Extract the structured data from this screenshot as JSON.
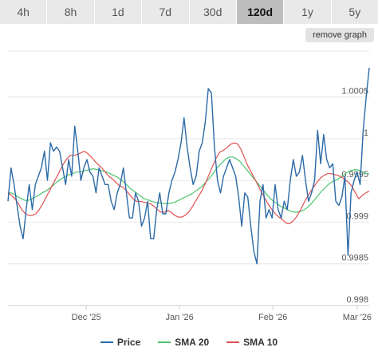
{
  "tabs": [
    {
      "label": "4h",
      "active": false
    },
    {
      "label": "8h",
      "active": false
    },
    {
      "label": "1d",
      "active": false
    },
    {
      "label": "7d",
      "active": false
    },
    {
      "label": "30d",
      "active": false
    },
    {
      "label": "120d",
      "active": true
    },
    {
      "label": "1y",
      "active": false
    },
    {
      "label": "5y",
      "active": false
    }
  ],
  "remove_graph_label": "remove graph",
  "colors": {
    "price": "#2b6aa8",
    "sma20": "#4cc46e",
    "sma10": "#e05050"
  },
  "chart_data": {
    "type": "line",
    "ylim": [
      0.998,
      1.00105
    ],
    "yticks": [
      {
        "value": 0.998,
        "label": "0.998"
      },
      {
        "value": 0.9985,
        "label": "0.9985"
      },
      {
        "value": 0.999,
        "label": "0.999"
      },
      {
        "value": 0.9995,
        "label": "0.9995"
      },
      {
        "value": 1.0,
        "label": "1"
      },
      {
        "value": 1.0005,
        "label": "1.0005"
      }
    ],
    "xlim": [
      0,
      120
    ],
    "xticks": [
      {
        "value": 26,
        "label": "Dec '25"
      },
      {
        "value": 57,
        "label": "Jan '26"
      },
      {
        "value": 88,
        "label": "Feb '26"
      },
      {
        "value": 116,
        "label": "Mar '26"
      }
    ],
    "grid": true,
    "legend": "bottom",
    "series": [
      {
        "name": "Price",
        "key": "price",
        "values": [
          0.99925,
          0.99965,
          0.99945,
          0.9992,
          0.99895,
          0.9988,
          0.99915,
          0.99945,
          0.99915,
          0.99945,
          0.99955,
          0.99965,
          0.99985,
          0.9995,
          0.99995,
          0.99985,
          0.9999,
          0.99985,
          0.99965,
          0.99945,
          0.99975,
          0.99955,
          1.00015,
          0.99985,
          0.9995,
          0.99965,
          0.99975,
          0.9996,
          0.99955,
          0.99935,
          0.99965,
          0.99955,
          0.99945,
          0.99945,
          0.99925,
          0.99915,
          0.99935,
          0.99945,
          0.99965,
          0.99935,
          0.99905,
          0.99905,
          0.99935,
          0.99925,
          0.99895,
          0.99905,
          0.99925,
          0.9988,
          0.9988,
          0.99915,
          0.99935,
          0.9991,
          0.9991,
          0.99935,
          0.9995,
          0.9996,
          0.99975,
          0.99995,
          1.00025,
          0.9999,
          0.99965,
          0.99945,
          0.99955,
          0.99985,
          0.99995,
          1.0002,
          1.0006,
          1.00055,
          0.9999,
          0.9995,
          0.99935,
          0.99955,
          0.99965,
          0.99975,
          0.99965,
          0.99955,
          0.9993,
          0.99895,
          0.99935,
          0.9993,
          0.99895,
          0.99865,
          0.9985,
          0.99925,
          0.99945,
          0.99905,
          0.99915,
          0.99905,
          0.99945,
          0.99915,
          0.99905,
          0.99925,
          0.99915,
          0.9995,
          0.99975,
          0.99955,
          0.9996,
          0.9998,
          0.9995,
          0.99925,
          0.99935,
          0.9995,
          1.0001,
          0.9997,
          1.00005,
          0.99975,
          0.99965,
          0.9997,
          0.99925,
          0.9992,
          0.9993,
          0.99955,
          0.9986,
          0.99935,
          0.9995,
          0.9996,
          0.99945,
          1.0001,
          1.0005,
          1.00085
        ]
      },
      {
        "name": "SMA 20",
        "key": "sma20",
        "values": [
          0.99935,
          0.99935,
          0.99933,
          0.9993,
          0.99928,
          0.99926,
          0.99926,
          0.99928,
          0.9993,
          0.99932,
          0.99935,
          0.99937,
          0.9994,
          0.99943,
          0.99947,
          0.9995,
          0.99953,
          0.99955,
          0.99957,
          0.99958,
          0.9996,
          0.9996,
          0.99961,
          0.99962,
          0.99963,
          0.99964,
          0.99963,
          0.99962,
          0.99961,
          0.9996,
          0.99958,
          0.99956,
          0.99954,
          0.99951,
          0.99948,
          0.99944,
          0.9994,
          0.99937,
          0.99934,
          0.99931,
          0.99928,
          0.99927,
          0.99925,
          0.99924,
          0.99923,
          0.99923,
          0.99922,
          0.99922,
          0.99923,
          0.99924,
          0.99926,
          0.99928,
          0.9993,
          0.99932,
          0.99934,
          0.99937,
          0.9994,
          0.99943,
          0.99948,
          0.99952,
          0.99957,
          0.99963,
          0.99968,
          0.99972,
          0.99976,
          0.99978,
          0.99978,
          0.99976,
          0.99973,
          0.99968,
          0.99963,
          0.99958,
          0.99953,
          0.99948,
          0.99943,
          0.99938,
          0.99933,
          0.99928,
          0.99925,
          0.99922,
          0.99919,
          0.99917,
          0.99915,
          0.99913,
          0.99912,
          0.99912,
          0.99913,
          0.99915,
          0.99918,
          0.99922,
          0.99927,
          0.99932,
          0.99937,
          0.99941,
          0.99945,
          0.99948,
          0.9995,
          0.99952,
          0.99955,
          0.99958,
          0.99961,
          0.99962,
          0.99963,
          0.99962,
          0.9996,
          0.99958,
          0.99958
        ]
      },
      {
        "name": "SMA 10",
        "key": "sma10",
        "values": [
          0.99935,
          0.99932,
          0.99928,
          0.99922,
          0.99915,
          0.9991,
          0.99908,
          0.99908,
          0.9991,
          0.99915,
          0.99922,
          0.9993,
          0.99938,
          0.99946,
          0.99954,
          0.99962,
          0.9997,
          0.99976,
          0.9998,
          0.9998,
          0.99981,
          0.99983,
          0.99985,
          0.99982,
          0.99978,
          0.99973,
          0.99969,
          0.99965,
          0.9996,
          0.99955,
          0.99952,
          0.99948,
          0.99944,
          0.99942,
          0.99938,
          0.99933,
          0.99928,
          0.99925,
          0.99925,
          0.99924,
          0.99923,
          0.99922,
          0.99919,
          0.99915,
          0.99912,
          0.99912,
          0.99914,
          0.99912,
          0.99908,
          0.99906,
          0.99906,
          0.99908,
          0.99912,
          0.99918,
          0.99925,
          0.99932,
          0.99939,
          0.99948,
          0.99958,
          0.99968,
          0.99977,
          0.99984,
          0.99986,
          0.99989,
          0.99993,
          0.99995,
          0.99994,
          0.99988,
          0.99978,
          0.99968,
          0.9996,
          0.99952,
          0.99944,
          0.99936,
          0.99928,
          0.99921,
          0.99915,
          0.9991,
          0.99906,
          0.99903,
          0.99899,
          0.99898,
          0.99901,
          0.99906,
          0.99913,
          0.99921,
          0.99929,
          0.99936,
          0.99942,
          0.99948,
          0.99953,
          0.99956,
          0.99958,
          0.99958,
          0.99957,
          0.99956,
          0.99954,
          0.99951,
          0.99948,
          0.99943,
          0.99935,
          0.99928,
          0.99932,
          0.99935,
          0.99937
        ]
      }
    ]
  }
}
